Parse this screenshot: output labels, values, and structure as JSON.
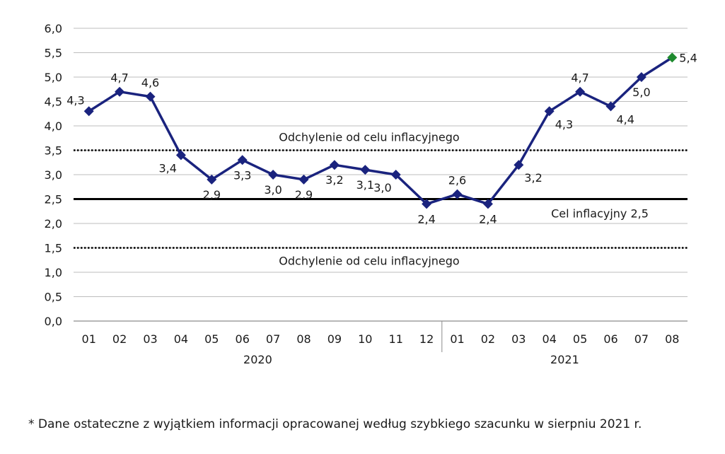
{
  "chart_data": {
    "type": "line",
    "categories": [
      "01",
      "02",
      "03",
      "04",
      "05",
      "06",
      "07",
      "08",
      "09",
      "10",
      "11",
      "12",
      "01",
      "02",
      "03",
      "04",
      "05",
      "06",
      "07",
      "08"
    ],
    "year_groups": [
      {
        "label": "2020",
        "count": 12
      },
      {
        "label": "2021",
        "count": 8
      }
    ],
    "series": [
      {
        "values": [
          4.3,
          4.7,
          4.6,
          3.4,
          2.9,
          3.3,
          3.0,
          2.9,
          3.2,
          3.1,
          3.0,
          2.4,
          2.6,
          2.4,
          3.2,
          4.3,
          4.7,
          4.4,
          5.0,
          5.4
        ],
        "data_labels": [
          "4,3",
          "4,7",
          "4,6",
          "3,4",
          "2,9",
          "3,3",
          "3,0",
          "2,9",
          "3,2",
          "3,1",
          "3,0",
          "2,4",
          "2,6",
          "2,4",
          "3,2",
          "4,3",
          "4,7",
          "4,4",
          "5,0",
          "5,4"
        ],
        "color": "#1a237e",
        "last_point_color": "#1e8a2e"
      }
    ],
    "y_ticks": [
      "0,0",
      "0,5",
      "1,0",
      "1,5",
      "2,0",
      "2,5",
      "3,0",
      "3,5",
      "4,0",
      "4,5",
      "5,0",
      "5,5",
      "6,0"
    ],
    "ylim": [
      0,
      6
    ],
    "grid": true,
    "reference_lines": [
      {
        "value": 3.5,
        "style": "dotted",
        "label": "Odchylenie od celu inflacyjnego"
      },
      {
        "value": 2.5,
        "style": "solid",
        "label": "Cel inflacyjny 2,5"
      },
      {
        "value": 1.5,
        "style": "dotted",
        "label": "Odchylenie od celu inflacyjnego"
      }
    ]
  },
  "footnote": "* Dane ostateczne z wyjątkiem informacji opracowanej według szybkiego szacunku w sierpniu 2021 r."
}
